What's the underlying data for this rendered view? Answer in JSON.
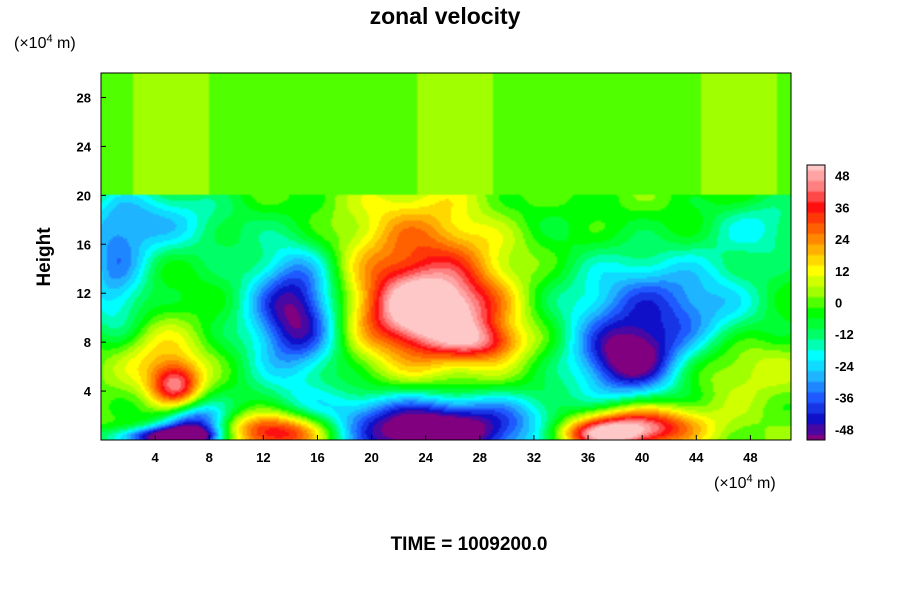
{
  "chart_data": {
    "type": "heatmap",
    "title": "zonal velocity",
    "ylabel": "Height",
    "x_unit_base": "(×10",
    "x_unit_exp": "4",
    "x_unit_tail": " m)",
    "y_unit_base": "(×10",
    "y_unit_exp": "4",
    "y_unit_tail": " m)",
    "xlim": [
      0,
      51
    ],
    "ylim": [
      0,
      30
    ],
    "x_ticks": [
      "4",
      "8",
      "12",
      "16",
      "20",
      "24",
      "28",
      "32",
      "36",
      "40",
      "44",
      "48"
    ],
    "y_ticks": [
      "4",
      "8",
      "12",
      "16",
      "20",
      "24",
      "28"
    ],
    "colorbar": {
      "vmin": -52,
      "vmax": 52,
      "tick_labels": [
        "48",
        "36",
        "24",
        "12",
        "0",
        "-12",
        "-24",
        "-36",
        "-48"
      ],
      "stops": [
        "#800080",
        "#1010c8",
        "#1e5aff",
        "#1eb4ff",
        "#00ffff",
        "#00ff66",
        "#00ff00",
        "#a0ff00",
        "#ffff00",
        "#ffb000",
        "#ff6000",
        "#ff1010",
        "#ff8080",
        "#ffc8c8"
      ]
    },
    "background_value": 1,
    "blobs": [
      {
        "x": 24.5,
        "y": 10.5,
        "sx": 3.2,
        "sy": 2.2,
        "v": 44
      },
      {
        "x": 23,
        "y": 12,
        "sx": 5,
        "sy": 3.5,
        "v": 24
      },
      {
        "x": 24,
        "y": 17,
        "sx": 4,
        "sy": 3,
        "v": 16
      },
      {
        "x": 26,
        "y": 8,
        "sx": 6,
        "sy": 3,
        "v": 10
      },
      {
        "x": 14.5,
        "y": 10.5,
        "sx": 2.2,
        "sy": 3.5,
        "v": -44
      },
      {
        "x": 14,
        "y": 10,
        "sx": 5,
        "sy": 5,
        "v": -15
      },
      {
        "x": 39,
        "y": 6.5,
        "sx": 2.5,
        "sy": 2,
        "v": -42
      },
      {
        "x": 42,
        "y": 11,
        "sx": 5,
        "sy": 3,
        "v": -28
      },
      {
        "x": 38,
        "y": 9,
        "sx": 6,
        "sy": 5,
        "v": -14
      },
      {
        "x": 4,
        "y": 18,
        "sx": 4,
        "sy": 2.2,
        "v": -24
      },
      {
        "x": 1,
        "y": 13,
        "sx": 1.8,
        "sy": 4,
        "v": -28
      },
      {
        "x": 49,
        "y": 17.5,
        "sx": 3,
        "sy": 2,
        "v": -18
      },
      {
        "x": 31,
        "y": 18.5,
        "sx": 4,
        "sy": 1.5,
        "v": -6
      },
      {
        "x": 5.5,
        "y": 4.5,
        "sx": 1.3,
        "sy": 1.3,
        "v": 42
      },
      {
        "x": 4,
        "y": 7,
        "sx": 3,
        "sy": 2,
        "v": 16
      },
      {
        "x": 24.5,
        "y": 0.3,
        "sx": 5.5,
        "sy": 1.8,
        "v": -56
      },
      {
        "x": 24.5,
        "y": 2.3,
        "sx": 9,
        "sy": 1.5,
        "v": -18
      },
      {
        "x": 13,
        "y": 0.6,
        "sx": 3.2,
        "sy": 1.2,
        "v": 52
      },
      {
        "x": 39.5,
        "y": 1.2,
        "sx": 3.5,
        "sy": 1.2,
        "v": 48
      },
      {
        "x": 37,
        "y": 0.4,
        "sx": 2.5,
        "sy": 0.8,
        "v": 36
      },
      {
        "x": 7,
        "y": 1.2,
        "sx": 1.8,
        "sy": 1.2,
        "v": -45
      },
      {
        "x": 5,
        "y": 0.2,
        "sx": 3,
        "sy": 0.6,
        "v": -52
      },
      {
        "x": 47,
        "y": 6,
        "sx": 3,
        "sy": 2,
        "v": 14
      },
      {
        "x": 28.5,
        "y": 8,
        "sx": 2,
        "sy": 1,
        "v": 22
      }
    ],
    "green_layer_above": 20,
    "time_label": "TIME = 1009200.0"
  }
}
